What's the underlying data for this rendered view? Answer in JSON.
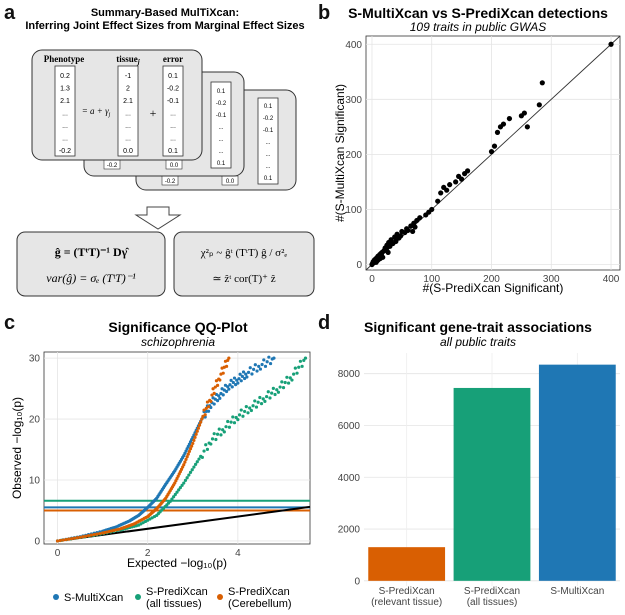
{
  "panels": {
    "a": {
      "letter": "a",
      "title_line1": "Summary-Based MulTiXcan:",
      "title_line2": "Inferring Joint Effect Sizes from Marginal Effect Sizes",
      "card_headers": {
        "phenotype": "Phenotype",
        "tissue": "tissue",
        "tissue_sub": "j",
        "error": "error"
      },
      "phenotype_col": [
        "0.2",
        "1.3",
        "2.1",
        "...",
        "...",
        "...",
        "-0.2"
      ],
      "tissue_col": [
        "-1",
        "2",
        "2.1",
        "...",
        "...",
        "...",
        "0.0"
      ],
      "error_col": [
        "0.1",
        "-0.2",
        "-0.1",
        "...",
        "...",
        "...",
        "0.1"
      ],
      "back_col_1": [
        "0.1",
        "-0.2",
        "-0.1",
        "...",
        "...",
        "...",
        "0.1"
      ],
      "back_col_2": [
        "0.1",
        "-0.2",
        "-0.1",
        "...",
        "...",
        "...",
        "0.1"
      ],
      "peek_values": {
        "back1_tissue": "-0.2",
        "back1_error": "0.0",
        "back2_tissue": "-0.2",
        "back2_error": "0.0"
      },
      "model_equals": "= a + γ",
      "model_sub": "j",
      "plus": "+",
      "formula_left_1": "ĝ = (TᵗT)⁻¹ Dγ̂",
      "formula_left_2": "var(ĝ) = σₑ (TᵗT)⁻¹",
      "formula_right_1": "χ²ₚ ~ ĝᵗ (TᵗT) ĝ / σ²ₑ",
      "formula_right_2": "≃ ẑᵗ cor(T)⁺ ẑ"
    },
    "b": {
      "letter": "b",
      "chart_data": {
        "type": "scatter",
        "title": "S-MultiXcan vs S-PrediXcan detections",
        "subtitle": "109 traits in public GWAS",
        "xlabel": "#(S-PrediXcan Significant)",
        "ylabel": "#(S-MultiXcan Significant)",
        "xlim": [
          -10,
          415
        ],
        "ylim": [
          -10,
          415
        ],
        "xticks": [
          "0",
          "100",
          "200",
          "300",
          "400"
        ],
        "yticks": [
          "0",
          "100",
          "200",
          "300",
          "400"
        ],
        "reference_line": "y = x",
        "x": [
          0,
          1,
          2,
          3,
          4,
          5,
          6,
          7,
          8,
          9,
          10,
          11,
          12,
          13,
          14,
          15,
          16,
          17,
          18,
          20,
          22,
          24,
          25,
          27,
          28,
          30,
          32,
          35,
          38,
          40,
          42,
          45,
          48,
          50,
          55,
          58,
          60,
          65,
          68,
          70,
          72,
          75,
          80,
          90,
          95,
          100,
          110,
          115,
          120,
          125,
          130,
          140,
          145,
          150,
          155,
          160,
          200,
          205,
          210,
          215,
          220,
          230,
          250,
          255,
          260,
          280,
          285,
          400
        ],
        "y": [
          0,
          2,
          5,
          3,
          8,
          6,
          10,
          4,
          12,
          7,
          15,
          9,
          14,
          18,
          11,
          20,
          16,
          22,
          13,
          25,
          30,
          28,
          35,
          22,
          40,
          33,
          45,
          38,
          50,
          42,
          55,
          48,
          52,
          60,
          58,
          65,
          62,
          70,
          60,
          75,
          68,
          80,
          85,
          90,
          95,
          100,
          115,
          130,
          140,
          135,
          145,
          150,
          160,
          155,
          165,
          170,
          205,
          215,
          240,
          250,
          255,
          265,
          270,
          275,
          250,
          290,
          330,
          400
        ]
      }
    },
    "c": {
      "letter": "c",
      "chart_data": {
        "type": "line",
        "title": "Significance QQ-Plot",
        "subtitle": "schizophrenia",
        "xlabel": "Expected  −log₁₀(p)",
        "ylabel": "Observed  −log₁₀(p)",
        "xlim": [
          -0.3,
          5.6
        ],
        "ylim": [
          -0.5,
          31
        ],
        "xticks": [
          "0",
          "2",
          "4"
        ],
        "yticks": [
          "0",
          "10",
          "20",
          "30"
        ],
        "expected_line": [
          [
            0,
            0
          ],
          [
            5.6,
            5.6
          ]
        ],
        "thresholds": [
          {
            "name": "S-MultiXcan",
            "value": 5.5,
            "color": "#1f77b4"
          },
          {
            "name": "S-PrediXcan (all tissues)",
            "value": 6.6,
            "color": "#17a078"
          },
          {
            "name": "S-PrediXcan (Cerebellum)",
            "value": 5.0,
            "color": "#d95f02"
          }
        ],
        "series": [
          {
            "name": "S-MultiXcan",
            "color": "#1f77b4",
            "x": [
              0,
              0.5,
              1,
              1.3,
              1.6,
              1.8,
              2.0,
              2.2,
              2.4,
              2.6,
              2.8,
              3.0,
              3.2,
              3.4,
              3.6,
              3.8,
              4.0,
              4.2,
              4.5,
              4.8
            ],
            "y": [
              0,
              0.7,
              1.6,
              2.3,
              3.3,
              4.2,
              5.5,
              7.0,
              9.3,
              11.5,
              14,
              17,
              20,
              22.5,
              24,
              25.5,
              26.5,
              27.5,
              28.8,
              30
            ]
          },
          {
            "name": "S-PrediXcan (all tissues)",
            "color": "#17a078",
            "x": [
              0,
              0.8,
              1.4,
              1.8,
              2.2,
              2.5,
              2.8,
              3.1,
              3.4,
              3.7,
              4.0,
              4.3,
              4.6,
              4.9,
              5.2,
              5.5
            ],
            "y": [
              0,
              0.9,
              1.8,
              2.6,
              4.2,
              6.5,
              9.5,
              13,
              16.5,
              18.5,
              20.5,
              22,
              23.5,
              25,
              27,
              30
            ]
          },
          {
            "name": "S-PrediXcan (Cerebellum)",
            "color": "#d95f02",
            "x": [
              0,
              0.5,
              1.0,
              1.4,
              1.7,
              2.0,
              2.2,
              2.4,
              2.6,
              2.8,
              3.0,
              3.2,
              3.4,
              3.6,
              3.8
            ],
            "y": [
              0,
              0.6,
              1.3,
              2.0,
              2.8,
              4.0,
              5.3,
              7.0,
              9.5,
              12.5,
              16,
              20,
              23.5,
              27,
              30
            ]
          }
        ],
        "legend": [
          "S-MultiXcan",
          "S-PrediXcan\n(all tissues)",
          "S-PrediXcan\n(Cerebellum)"
        ],
        "legend_lines": [
          [
            "S-MultiXcan"
          ],
          [
            "S-PrediXcan",
            "(all tissues)"
          ],
          [
            "S-PrediXcan",
            "(Cerebellum)"
          ]
        ]
      }
    },
    "d": {
      "letter": "d",
      "chart_data": {
        "type": "bar",
        "title": "Significant gene-trait associations",
        "subtitle": "all public traits",
        "categories": [
          [
            "S-PrediXcan",
            "(relevant tissue)"
          ],
          [
            "S-PrediXcan",
            "(all tissues)"
          ],
          [
            "S-MultiXcan"
          ]
        ],
        "values": [
          1300,
          7450,
          8350
        ],
        "colors": [
          "#d95f02",
          "#17a078",
          "#1f77b4"
        ],
        "ylim": [
          -200,
          8800
        ],
        "yticks": [
          "0",
          "2000",
          "4000",
          "6000",
          "8000"
        ]
      }
    }
  }
}
